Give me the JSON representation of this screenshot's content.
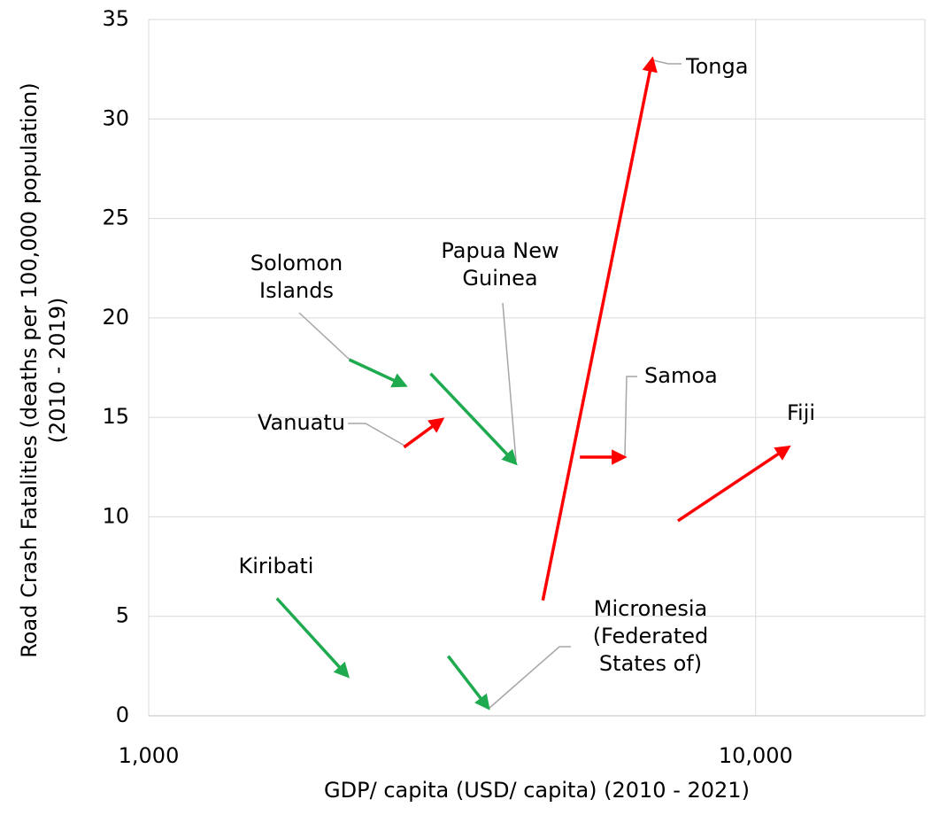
{
  "chart_data": {
    "type": "arrow-scatter",
    "x_label": "GDP/ capita (USD/ capita) (2010 - 2021)",
    "y_label": "Road Crash Fatalities (deaths per 100,000 population) (2010 - 2019)",
    "x_scale": "log",
    "xlim": [
      1000,
      19000
    ],
    "xticks": [
      {
        "value": 1000,
        "label": "1,000"
      },
      {
        "value": 10000,
        "label": "10,000"
      }
    ],
    "ylim": [
      0,
      35
    ],
    "yticks": [
      0,
      5,
      10,
      15,
      20,
      25,
      30,
      35
    ],
    "grid": true,
    "series": [
      {
        "name": "Solomon Islands",
        "color": "#1faa4f",
        "x": [
          2140,
          2644
        ],
        "y": [
          17.9,
          16.6
        ]
      },
      {
        "name": "Vanuatu",
        "color": "#ff0000",
        "x": [
          2634,
          3043
        ],
        "y": [
          13.5,
          14.9
        ]
      },
      {
        "name": "Papua New Guinea",
        "color": "#1faa4f",
        "x": [
          2913,
          4019
        ],
        "y": [
          17.2,
          12.7
        ]
      },
      {
        "name": "Tonga",
        "color": "#ff0000",
        "x": [
          4460,
          6756
        ],
        "y": [
          5.8,
          33.0
        ]
      },
      {
        "name": "Samoa",
        "color": "#ff0000",
        "x": [
          5132,
          6069
        ],
        "y": [
          13.0,
          13.0
        ]
      },
      {
        "name": "Fiji",
        "color": "#ff0000",
        "x": [
          7444,
          11320
        ],
        "y": [
          9.8,
          13.5
        ]
      },
      {
        "name": "Kiribati",
        "color": "#1faa4f",
        "x": [
          1626,
          2126
        ],
        "y": [
          5.9,
          2.0
        ]
      },
      {
        "name": "Micronesia (Federated States of)",
        "color": "#1faa4f",
        "x": [
          3114,
          3624
        ],
        "y": [
          3.0,
          0.4
        ]
      }
    ]
  }
}
